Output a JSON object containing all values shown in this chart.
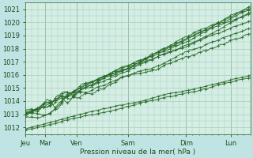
{
  "xlabel": "Pression niveau de la mer( hPa )",
  "bg_color": "#c0e4e4",
  "plot_bg_color": "#d4eee4",
  "grid_color": "#a8ccc0",
  "line_color": "#2a6a2a",
  "ylim": [
    1011.5,
    1021.5
  ],
  "yticks": [
    1012,
    1013,
    1014,
    1015,
    1016,
    1017,
    1018,
    1019,
    1020,
    1021
  ],
  "day_labels": [
    "Jeu",
    "Mar",
    "Ven",
    "Sam",
    "Dim",
    "Lun"
  ],
  "day_positions": [
    0,
    18,
    48,
    96,
    150,
    192
  ],
  "xlim": [
    0,
    210
  ],
  "xlabel_fontsize": 6.5,
  "tick_fontsize": 6
}
